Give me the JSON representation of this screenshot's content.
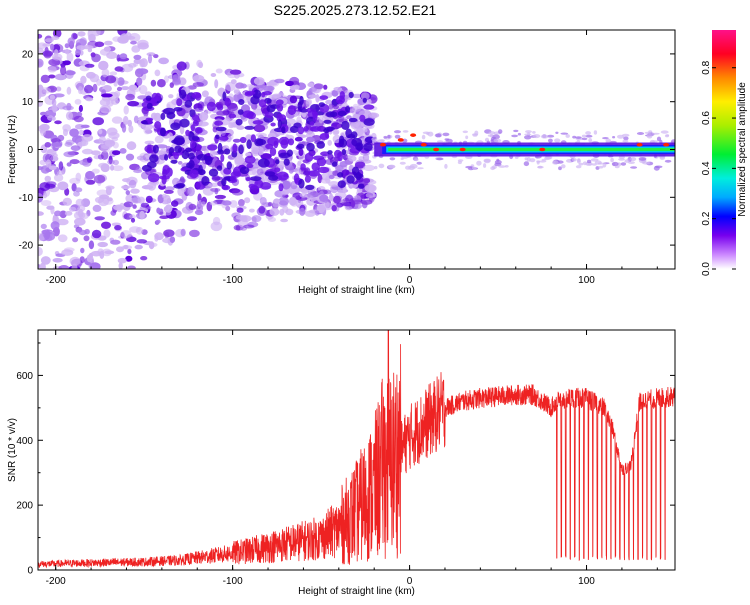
{
  "title": "S225.2025.273.12.52.E21",
  "chart_data": [
    {
      "type": "heatmap",
      "xlabel": "Height of straight line (km)",
      "ylabel": "Frequency (Hz)",
      "xlim": [
        -210,
        150
      ],
      "ylim": [
        -25,
        25
      ],
      "xticks": [
        -200,
        -100,
        0,
        100
      ],
      "yticks": [
        -20,
        -10,
        0,
        10,
        20
      ],
      "colorbar": {
        "label": "Normalized spectral amplitude",
        "range": [
          0.0,
          0.95
        ],
        "ticks": [
          0.0,
          0.2,
          0.4,
          0.6,
          0.8
        ]
      },
      "features": {
        "noise_region_x": [
          -210,
          -20
        ],
        "carrier_line_x": [
          -20,
          150
        ],
        "carrier_frequency_hz": 0,
        "peak_amplitude": 0.95
      }
    },
    {
      "type": "line",
      "xlabel": "Height of straight line (km)",
      "ylabel": "SNR (10 * v/v)",
      "xlim": [
        -210,
        150
      ],
      "ylim": [
        0,
        740
      ],
      "xticks": [
        -200,
        -100,
        0,
        100
      ],
      "yticks": [
        0,
        200,
        400,
        600
      ],
      "color": "#ee2222",
      "x": [
        -210,
        -180,
        -150,
        -130,
        -110,
        -90,
        -70,
        -50,
        -40,
        -30,
        -20,
        -15,
        -10,
        -5,
        0,
        10,
        20,
        30,
        40,
        50,
        60,
        70,
        80,
        83,
        90,
        100,
        110,
        115,
        120,
        125,
        130,
        140,
        150
      ],
      "y": [
        18,
        22,
        25,
        30,
        45,
        60,
        80,
        100,
        130,
        180,
        250,
        320,
        330,
        370,
        410,
        455,
        500,
        520,
        530,
        535,
        540,
        540,
        500,
        520,
        530,
        530,
        500,
        430,
        310,
        320,
        520,
        530,
        535
      ],
      "spike": {
        "x": -12,
        "y": 740
      },
      "dropouts_x_range": [
        83,
        145
      ],
      "dropout_floor": 30
    }
  ]
}
